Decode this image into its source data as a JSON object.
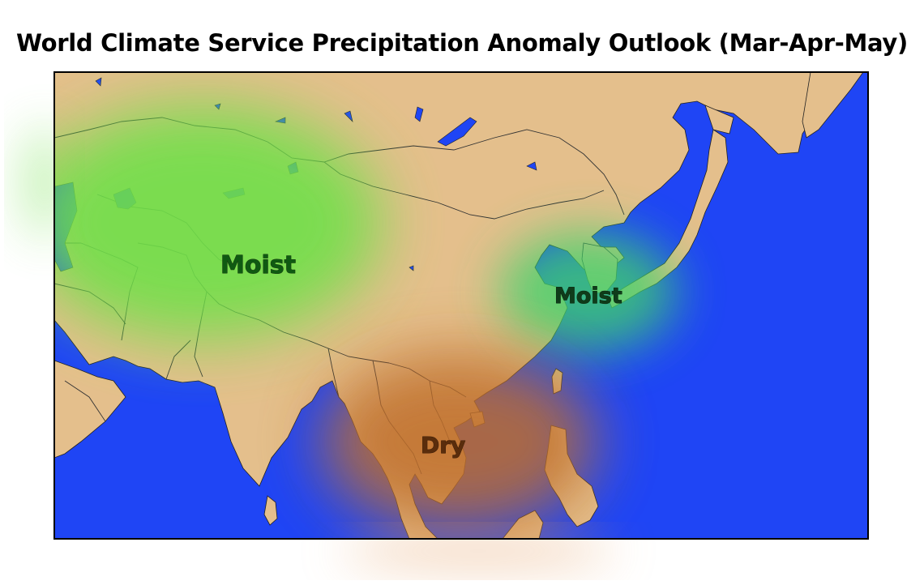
{
  "title": "World Climate Service Precipitation Anomaly Outlook (Mar-Apr-May)",
  "colors": {
    "ocean": "#1f45f5",
    "land": "#e4bf8c",
    "moist": "#6fe04a",
    "dry": "#c06e2c",
    "border": "#333333"
  },
  "anomalies": [
    {
      "label": "Moist",
      "type": "moist"
    },
    {
      "label": "Moist",
      "type": "moist"
    },
    {
      "label": "Dry",
      "type": "dry"
    }
  ]
}
